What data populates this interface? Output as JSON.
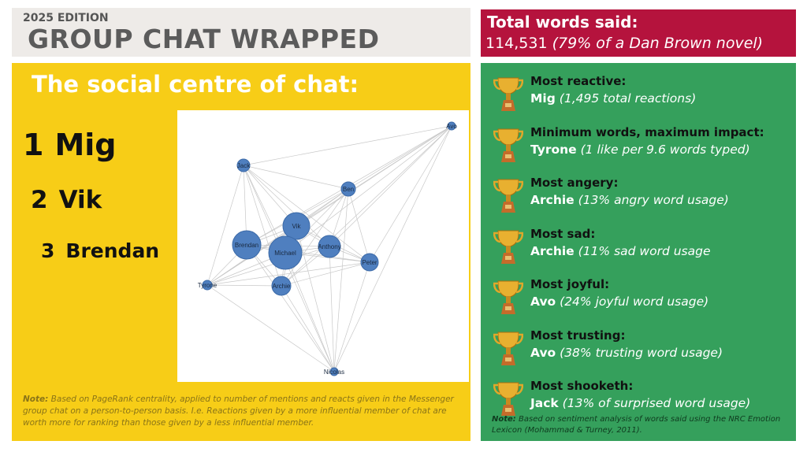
{
  "header": {
    "edition": "2025 EDITION",
    "title": "GROUP CHAT WRAPPED"
  },
  "social": {
    "heading": "The social centre of chat:",
    "ranking": [
      {
        "rank": "1",
        "name": "Mig"
      },
      {
        "rank": "2",
        "name": "Vik"
      },
      {
        "rank": "3",
        "name": "Brendan"
      }
    ],
    "network_nodes": [
      "Avo",
      "Jack",
      "Ben",
      "Vik",
      "Brendan",
      "Michael",
      "Anthony",
      "Peter",
      "Tyrone",
      "Archie",
      "Nicolas"
    ],
    "node_color": "#4f7fbf",
    "note_label": "Note:",
    "note": " Based on PageRank centrality, applied to number of mentions and reacts given in the Messenger group chat on a person-to-person basis. I.e. Reactions given by a more influential member of chat are worth more for ranking than those given by a less influential member."
  },
  "total": {
    "label": "Total words said:",
    "value": "114,531",
    "comparison": "(79% of a Dan Brown novel)"
  },
  "awards": [
    {
      "title": "Most reactive:",
      "name": "Mig",
      "detail": "(1,495 total reactions)"
    },
    {
      "title": "Minimum words, maximum impact:",
      "name": "Tyrone",
      "detail": "(1 like per 9.6 words typed)"
    },
    {
      "title": "Most angery:",
      "name": "Archie",
      "detail": "(13% angry word usage)"
    },
    {
      "title": "Most sad:",
      "name": "Archie",
      "detail": "(11% sad word usage"
    },
    {
      "title": "Most joyful:",
      "name": "Avo",
      "detail": "(24% joyful word usage)"
    },
    {
      "title": "Most trusting:",
      "name": "Avo",
      "detail": "(38% trusting word usage)"
    },
    {
      "title": "Most shooketh:",
      "name": "Jack",
      "detail": "(13% of surprised word usage)"
    }
  ],
  "awards_note_label": "Note:",
  "awards_note": " Based on sentiment analysis of words said using the NRC Emotion Lexicon (Mohammad & Turney, 2011).",
  "colors": {
    "yellow": "#f7cd17",
    "red": "#b5133d",
    "green": "#35a05c",
    "header": "#eeebe8"
  }
}
